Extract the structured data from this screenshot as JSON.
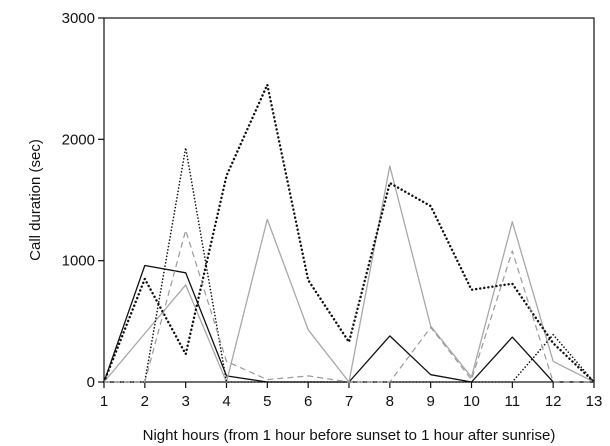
{
  "chart_data": {
    "type": "line",
    "title": "",
    "xlabel": "Night hours (from 1 hour before sunset to 1 hour after sunrise)",
    "ylabel": "Call duration (sec)",
    "xlim": [
      1,
      13
    ],
    "ylim": [
      0,
      3000
    ],
    "x_ticks": [
      "1",
      "2",
      "3",
      "4",
      "5",
      "6",
      "7",
      "8",
      "9",
      "10",
      "11",
      "12",
      "13"
    ],
    "y_ticks": [
      "0",
      "1000",
      "2000",
      "3000"
    ],
    "grid": false,
    "legend": "none",
    "x": [
      1,
      2,
      3,
      4,
      5,
      6,
      7,
      8,
      9,
      10,
      11,
      12,
      13
    ],
    "series": [
      {
        "values": [
          0,
          960,
          900,
          50,
          0,
          0,
          0,
          380,
          60,
          0,
          370,
          0,
          0
        ],
        "color": "#111111",
        "style": "solid"
      },
      {
        "values": [
          0,
          400,
          800,
          0,
          1340,
          430,
          0,
          1780,
          460,
          40,
          1320,
          170,
          0
        ],
        "color": "#a8a8a8",
        "style": "solid"
      },
      {
        "values": [
          0,
          850,
          230,
          1700,
          2450,
          840,
          330,
          1640,
          1450,
          760,
          810,
          320,
          0
        ],
        "color": "#111111",
        "style": "dotted-heavy"
      },
      {
        "values": [
          0,
          0,
          1930,
          0,
          0,
          0,
          0,
          0,
          0,
          0,
          0,
          390,
          0
        ],
        "color": "#111111",
        "style": "dotted-fine"
      },
      {
        "values": [
          0,
          0,
          1250,
          170,
          20,
          50,
          0,
          0,
          450,
          20,
          1080,
          0,
          0
        ],
        "color": "#9a9a9a",
        "style": "dashed"
      }
    ]
  }
}
